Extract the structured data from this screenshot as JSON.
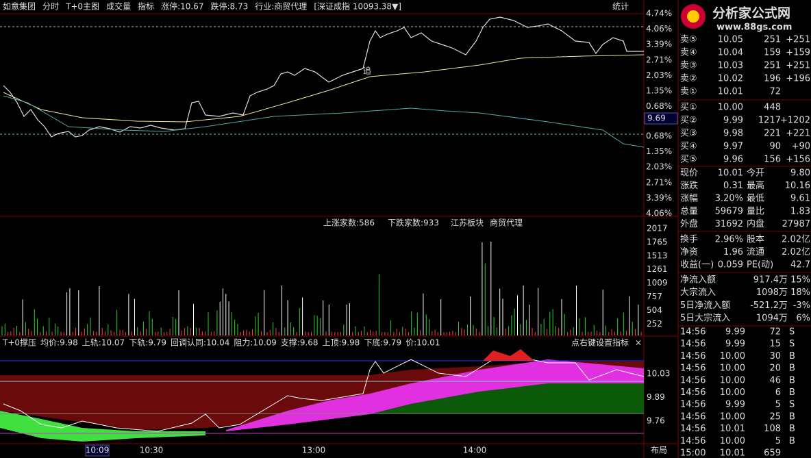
{
  "header": {
    "stock": "如意集团",
    "tabs": [
      "分时",
      "T+0主图"
    ],
    "volume_tab": "成交量",
    "indicator_tab": "指标",
    "limit_up": "涨停:10.67",
    "limit_down": "跌停:8.73",
    "industry": "行业:商贸代理",
    "index": "[深证成指 10093.38▼]",
    "stats": "统计"
  },
  "annotation": "追",
  "price_axis": {
    "up": [
      "4.74%",
      "4.06%",
      "3.39%",
      "2.71%",
      "2.03%",
      "1.35%",
      "0.68%"
    ],
    "mid": "9.69",
    "down": [
      "0.68%",
      "1.35%",
      "2.03%",
      "2.71%",
      "3.39%",
      "4.06%"
    ]
  },
  "volume_panel": {
    "up_count": "上涨家数:586",
    "down_count": "下跌家数:933",
    "board": "江苏板块",
    "industry": "商贸代理",
    "axis": [
      "2017",
      "1765",
      "1513",
      "1261",
      "1009",
      "757",
      "504",
      "252"
    ]
  },
  "indicator": {
    "items": [
      "T+0撑压",
      "均价:9.98",
      "上轨:10.07",
      "下轨:9.79",
      "回调认同:10.04",
      "阻力:10.09",
      "支撑:9.68",
      "上顶:9.98",
      "下底:9.79",
      "价:10.01"
    ],
    "hint": "点右键设置指标",
    "close": "×",
    "axis": [
      "10.03",
      "9.89",
      "9.76"
    ]
  },
  "time_axis": {
    "labels": [
      "10:09",
      "10:30",
      "13:00",
      "14:00"
    ],
    "layout": "布局"
  },
  "logo": {
    "title": "分析家公式网",
    "url": "www.88gs.com"
  },
  "order_book": [
    {
      "label": "卖⑤",
      "price": "10.05",
      "volume": "251",
      "change": "+251"
    },
    {
      "label": "卖④",
      "price": "10.04",
      "volume": "159",
      "change": "+159"
    },
    {
      "label": "卖③",
      "price": "10.03",
      "volume": "251",
      "change": "+251"
    },
    {
      "label": "卖②",
      "price": "10.02",
      "volume": "196",
      "change": "+196"
    },
    {
      "label": "卖①",
      "price": "10.01",
      "volume": "72"
    },
    {
      "label": "买①",
      "price": "10.00",
      "volume": "448"
    },
    {
      "label": "买②",
      "price": "9.99",
      "volume": "1217",
      "change": "+1202"
    },
    {
      "label": "买③",
      "price": "9.98",
      "volume": "221",
      "change": "+221"
    },
    {
      "label": "买④",
      "price": "9.97",
      "volume": "90",
      "change": "+90"
    },
    {
      "label": "买⑤",
      "price": "9.96",
      "volume": "156",
      "change": "+156"
    }
  ],
  "quote": [
    {
      "cells": [
        "现价",
        "10.01",
        "今开",
        "9.80"
      ],
      "colors": [
        "#ff4040",
        "#ff4040"
      ]
    },
    {
      "cells": [
        "涨跌",
        "0.31",
        "最高",
        "10.16"
      ],
      "colors": [
        "#ff4040",
        "#ff4040"
      ]
    },
    {
      "cells": [
        "涨幅",
        "3.20%",
        "最低",
        "9.61"
      ],
      "colors": [
        "#ff4040",
        "#00e000"
      ]
    },
    {
      "cells": [
        "总量",
        "59679",
        "量比",
        "1.83"
      ],
      "colors": [
        "#ffff40",
        "#ff4040"
      ]
    },
    {
      "cells": [
        "外盘",
        "31692",
        "内盘",
        "27987"
      ],
      "colors": [
        "#ff4040",
        "#00e000"
      ]
    },
    {
      "cells": [
        "换手",
        "2.96%",
        "股本",
        "2.02亿"
      ],
      "colors": [
        "#ffffff",
        "#ffffff"
      ]
    },
    {
      "cells": [
        "净资",
        "1.96",
        "流通",
        "2.02亿"
      ],
      "colors": [
        "#ffffff",
        "#ffffff"
      ]
    },
    {
      "cells": [
        "收益(一)",
        "0.059",
        "PE(动)",
        "42.7"
      ],
      "colors": [
        "#ffffff",
        "#ffffff"
      ]
    }
  ],
  "flows": [
    {
      "label": "净流入额",
      "amount": "917.4万",
      "pct": "15%",
      "color": "#ff4040"
    },
    {
      "label": "大宗流入",
      "amount": "1098万",
      "pct": "18%",
      "color": "#ff4040"
    },
    {
      "label": "5日净流入额",
      "amount": "-521.2万",
      "pct": "-3%",
      "color": "#00e000"
    },
    {
      "label": "5日大宗流入",
      "amount": "1094万",
      "pct": "6%",
      "color": "#ff4040"
    }
  ],
  "trades": [
    {
      "time": "14:56",
      "price": "9.99",
      "volume": "72",
      "side": "S"
    },
    {
      "time": "14:56",
      "price": "9.99",
      "volume": "15",
      "side": "S"
    },
    {
      "time": "14:56",
      "price": "10.00",
      "volume": "30",
      "side": "B"
    },
    {
      "time": "14:56",
      "price": "10.00",
      "volume": "20",
      "side": "B"
    },
    {
      "time": "14:56",
      "price": "10.00",
      "volume": "46",
      "side": "B"
    },
    {
      "time": "14:56",
      "price": "10.00",
      "volume": "6",
      "side": "B"
    },
    {
      "time": "14:56",
      "price": "9.99",
      "volume": "5",
      "side": "S"
    },
    {
      "time": "14:56",
      "price": "10.00",
      "volume": "25",
      "side": "B"
    },
    {
      "time": "14:56",
      "price": "10.01",
      "volume": "108",
      "side": "B"
    },
    {
      "time": "14:56",
      "price": "10.00",
      "volume": "5",
      "side": "B"
    },
    {
      "time": "15:00",
      "price": "10.01",
      "volume": "659"
    }
  ]
}
